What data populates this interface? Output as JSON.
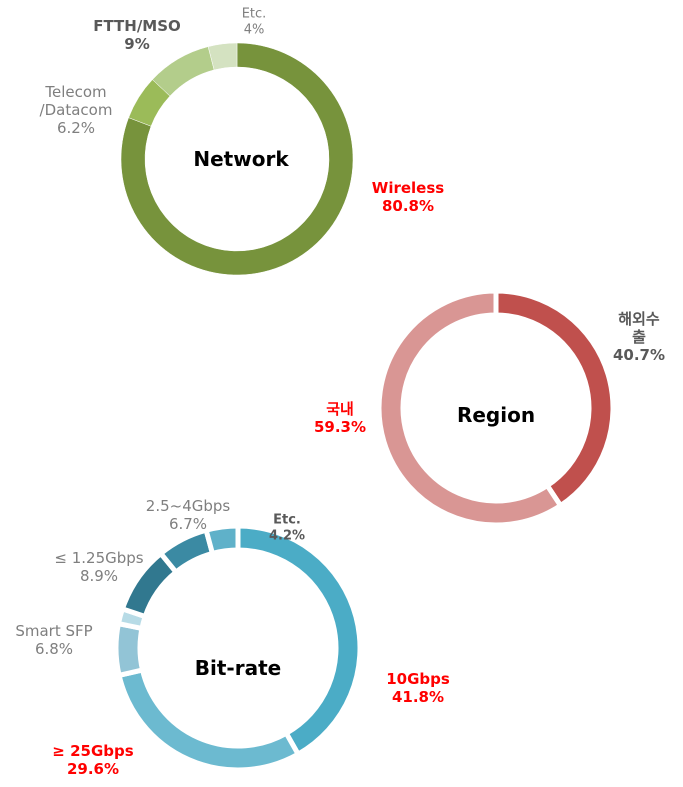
{
  "chart_data": [
    {
      "type": "pie",
      "donut": true,
      "title": "Network",
      "categories": [
        "Wireless",
        "Telecom\n/Datacom",
        "FTTH/MSO",
        "Etc."
      ],
      "values": [
        80.8,
        6.2,
        9,
        4
      ],
      "value_labels": [
        "80.8%",
        "6.2%",
        "9%",
        "4%"
      ],
      "colors": [
        "#77933c",
        "#9bbb59",
        "#b3cd8b",
        "#d4e2c1"
      ]
    },
    {
      "type": "pie",
      "donut": true,
      "title": "Region",
      "categories": [
        "해외수출",
        "국내"
      ],
      "values": [
        40.7,
        59.3
      ],
      "value_labels": [
        "40.7%",
        "59.3%"
      ],
      "colors": [
        "#c0504d",
        "#d99694"
      ]
    },
    {
      "type": "pie",
      "donut": true,
      "title": "Bit-rate",
      "categories": [
        "10Gbps",
        "≥ 25Gbps",
        "Smart SFP",
        null,
        "≤ 1.25Gbps",
        "2.5~4Gbps",
        "Etc."
      ],
      "values": [
        41.8,
        29.6,
        6.8,
        2,
        8.9,
        6.7,
        4.2
      ],
      "value_labels": [
        "41.8%",
        "29.6%",
        "6.8%",
        null,
        "8.9%",
        "6.7%",
        "4.2%"
      ],
      "colors": [
        "#4bacc6",
        "#6cbad0",
        "#92c4d6",
        "#b7dbe6",
        "#31788f",
        "#3b8aa3",
        "#5fb1c9"
      ]
    }
  ]
}
